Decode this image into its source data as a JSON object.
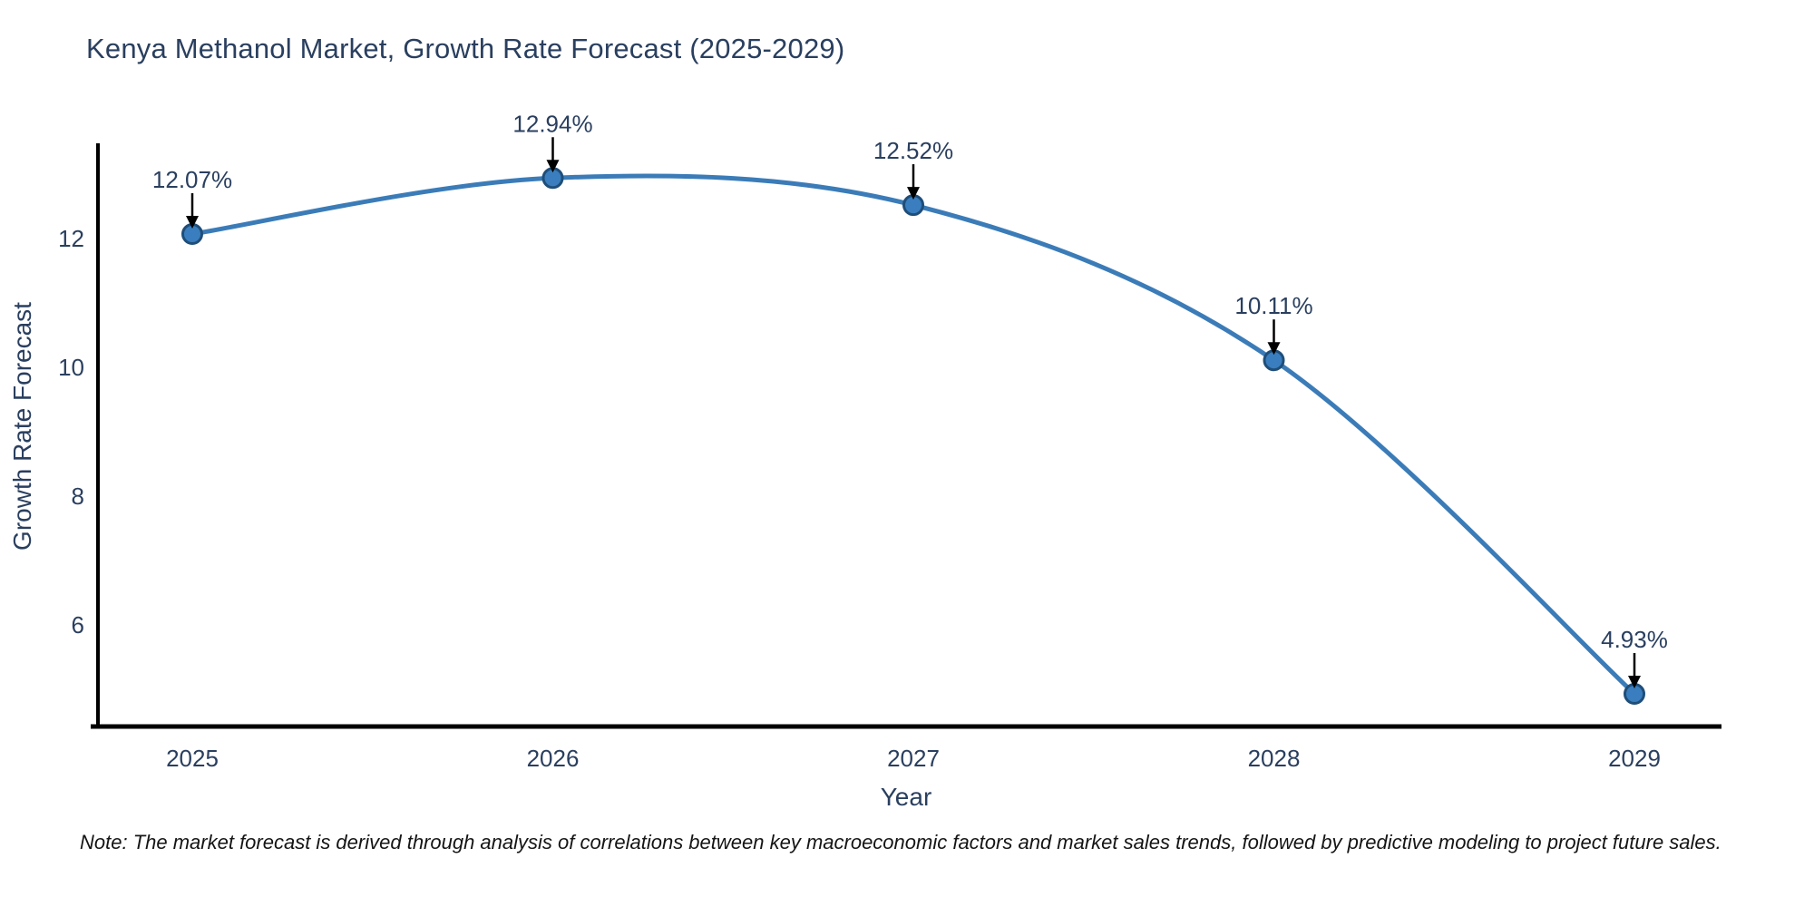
{
  "title": "Kenya Methanol Market, Growth Rate Forecast (2025-2029)",
  "note": "Note: The market forecast is derived through analysis of correlations between key macroeconomic factors and market sales trends, followed by predictive modeling to project future sales.",
  "colors": {
    "title_text": "#2a3f5f",
    "axis_text": "#2a3f5f",
    "annotation_text": "#2a3f5f",
    "line": "#3b7cb8",
    "marker_fill": "#3a7ebf",
    "marker_edge": "#1f4e79",
    "spine": "#000000",
    "arrow": "#000000",
    "note_text": "#151515",
    "background": "#ffffff"
  },
  "chart_data": {
    "type": "line",
    "title": "Kenya Methanol Market, Growth Rate Forecast (2025-2029)",
    "xlabel": "Year",
    "ylabel": "Growth Rate Forecast",
    "x": [
      2025,
      2026,
      2027,
      2028,
      2029
    ],
    "values": [
      12.07,
      12.94,
      12.52,
      10.11,
      4.93
    ],
    "point_labels": [
      "12.07%",
      "12.94%",
      "12.52%",
      "10.11%",
      "4.93%"
    ],
    "xticks": [
      "2025",
      "2026",
      "2027",
      "2028",
      "2029"
    ],
    "yticks": [
      6,
      8,
      10,
      12
    ],
    "ylim": [
      4.4,
      13.5
    ],
    "xlim": [
      2024.74,
      2029.24
    ],
    "grid": false,
    "legend_position": "none",
    "line_shape": "spline",
    "markers": true,
    "annotation_style": "value labels with downward arrows pointing at each data point"
  }
}
